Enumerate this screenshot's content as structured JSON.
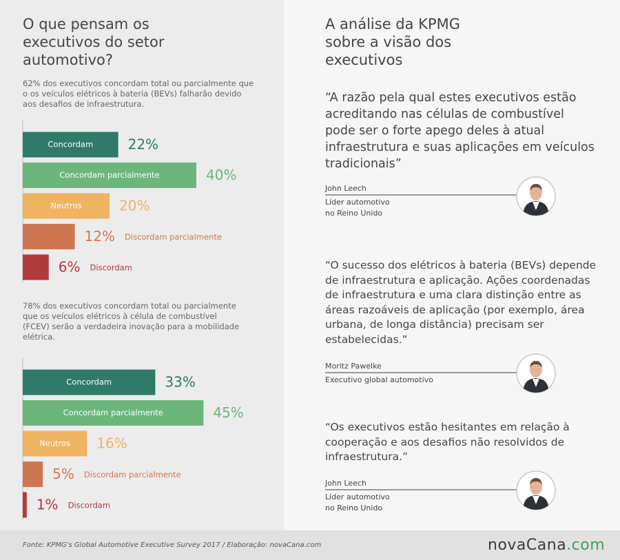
{
  "left_title": "O que pensam os executivos do setor automotivo?",
  "chart_data": [
    {
      "type": "bar",
      "subtitle": "62% dos executivos concordam total ou parcialmente que o os veículos elétricos à bateria (BEVs) falharão devido aos desafios de infraestrutura.",
      "categories": [
        "Concordam",
        "Concordam parcialmente",
        "Neutros",
        "Discordam parcialmente",
        "Discordam"
      ],
      "values": [
        22,
        40,
        20,
        12,
        6
      ],
      "value_labels": [
        "22%",
        "40%",
        "20%",
        "12%",
        "6%"
      ],
      "colors": [
        "#2f7a68",
        "#6cb67b",
        "#f0b35f",
        "#cf7752",
        "#b13a3e"
      ]
    },
    {
      "type": "bar",
      "subtitle": "78% dos executivos concordam total ou parcialmente que os veículos elétricos à célula de combustível (FCEV) serão a verdadeira inovação para a mobilidade elétrica.",
      "categories": [
        "Concordam",
        "Concordam parcialmente",
        "Neutros",
        "Discordam parcialmente",
        "Discordam"
      ],
      "values": [
        33,
        45,
        16,
        5,
        1
      ],
      "value_labels": [
        "33%",
        "45%",
        "16%",
        "5%",
        "1%"
      ],
      "colors": [
        "#2f7a68",
        "#6cb67b",
        "#f0b35f",
        "#cf7752",
        "#b13a3e"
      ]
    }
  ],
  "right_title": "A análise da KPMG sobre a visão dos executivos",
  "quotes": [
    {
      "text": "“A razão pela qual estes executivos estão acreditando nas células de combustível pode ser o forte apego deles à atual infraestrutura e suas aplicações em veículos tradicionais”",
      "name": "John Leech",
      "role": [
        "Líder automotivo",
        "no Reino Unido"
      ]
    },
    {
      "text": "“O sucesso dos elétricos à bateria (BEVs) depende de infraestrutura e aplicação. Ações coordenadas de infraestrutura e uma clara distinção entre as áreas razoáveis de aplicação (por exemplo, área urbana, de longa distância) precisam ser estabelecidas.”",
      "name": "Moritz Pawelke",
      "role": [
        "Executivo global automotivo"
      ]
    },
    {
      "text": "“Os executivos estão hesitantes em relação à cooperação e aos desafios não resolvidos de infraestrutura.”",
      "name": "John Leech",
      "role": [
        "Líder automotivo",
        "no Reino Unido"
      ]
    }
  ],
  "footer": {
    "source": "Fonte: KPMG's Global Automotive Executive Survey 2017 / Elaboração: novaCana.com",
    "logo": [
      "novaCana",
      ".com"
    ]
  }
}
